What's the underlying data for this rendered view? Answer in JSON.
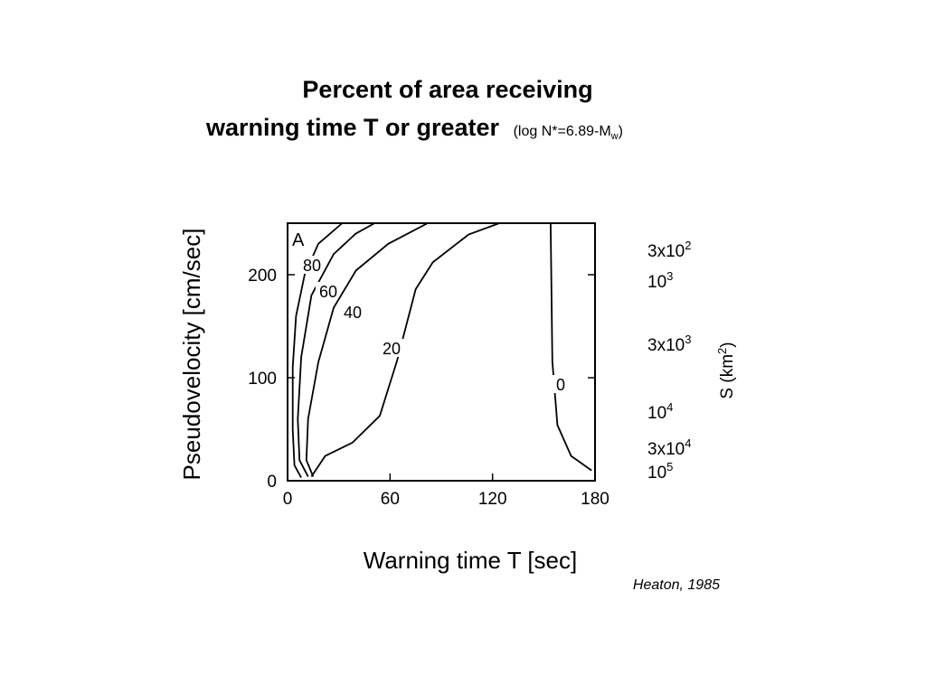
{
  "title_line1": "Percent of area receiving",
  "title_line2": "warning time T or greater",
  "subtitle": {
    "main": "(log N*=6.89-M",
    "sub": "w",
    "end": ")"
  },
  "source": "Heaton, 1985",
  "chart_data": {
    "type": "line",
    "panel_label": "A",
    "x_label": "Warning time T [sec]",
    "y_label": "Pseudovelocity [cm/sec]",
    "y2_label": {
      "main": "S (km",
      "sup": "2",
      "end": ")"
    },
    "y2_labels": [
      {
        "mantissa": "3x10",
        "exponent": "2"
      },
      {
        "mantissa": "10",
        "exponent": "3"
      },
      {
        "mantissa": "3x10",
        "exponent": "3"
      },
      {
        "mantissa": "10",
        "exponent": "4"
      },
      {
        "mantissa": "3x10",
        "exponent": "4"
      },
      {
        "mantissa": "10",
        "exponent": "5"
      }
    ],
    "xlim": [
      0,
      180
    ],
    "xticks": [
      0,
      60,
      120,
      180
    ],
    "ylim": [
      0,
      250
    ],
    "yticks": [
      0,
      100,
      200
    ],
    "color": "#000000",
    "series": [
      {
        "name": "80",
        "x": [
          8,
          4,
          3,
          3,
          5,
          10,
          18,
          32
        ],
        "values": [
          3,
          15,
          50,
          110,
          160,
          200,
          230,
          250
        ]
      },
      {
        "name": "60",
        "x": [
          12,
          7,
          6,
          8,
          14,
          27,
          40,
          51
        ],
        "values": [
          4,
          20,
          60,
          120,
          180,
          220,
          240,
          250
        ]
      },
      {
        "name": "40",
        "x": [
          15,
          11,
          12,
          18,
          27,
          40,
          59,
          82
        ],
        "values": [
          4,
          20,
          60,
          115,
          168,
          204,
          230,
          250
        ]
      },
      {
        "name": "20",
        "x": [
          14,
          22,
          38,
          54,
          64,
          75,
          85,
          106,
          124
        ],
        "values": [
          4,
          24,
          37,
          63,
          116,
          186,
          212,
          239,
          250
        ]
      },
      {
        "name": "0",
        "x": [
          154,
          155,
          158,
          166,
          178
        ],
        "values": [
          250,
          116,
          54,
          24,
          10
        ]
      }
    ]
  }
}
